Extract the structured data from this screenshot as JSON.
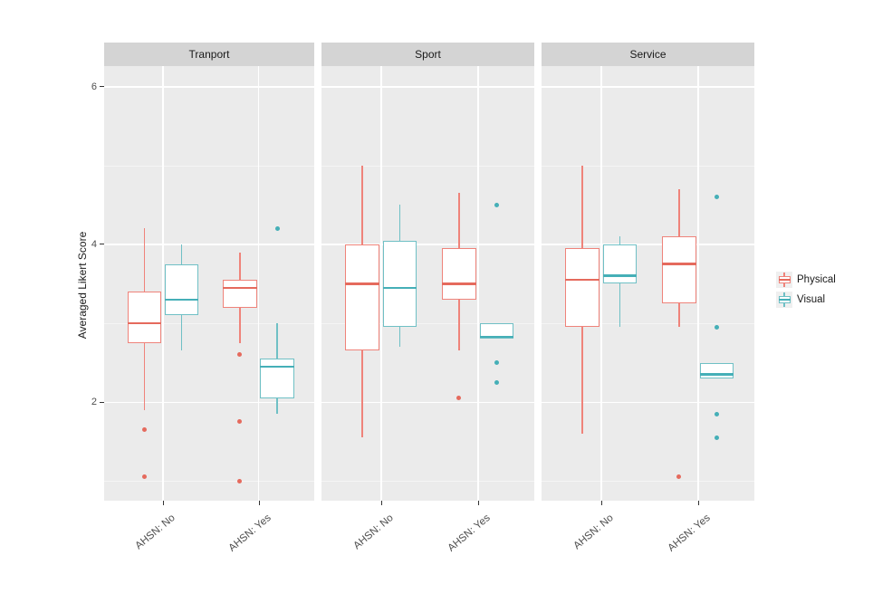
{
  "chart_data": {
    "type": "boxplot",
    "title": "",
    "ylabel": "Averaged Likert Score",
    "facets": [
      "Tranport",
      "Sport",
      "Service"
    ],
    "x_categories": [
      "AHSN: No",
      "AHSN: Yes"
    ],
    "series": [
      {
        "name": "Physical",
        "stroke": "#EF837A",
        "line": "#E56A5D"
      },
      {
        "name": "Visual",
        "stroke": "#6FC0C5",
        "line": "#45AFB7"
      }
    ],
    "ylim": [
      0.75,
      6.26
    ],
    "yticks": [
      2,
      4,
      6
    ],
    "yticks_minor": [
      1,
      3,
      5
    ],
    "grid": true,
    "legend_position": "right",
    "legend_items": [
      "Physical",
      "Visual"
    ],
    "boxes": [
      {
        "facet": "Tranport",
        "category": "AHSN: No",
        "series": "Physical",
        "whisker_low": 1.9,
        "q1": 2.75,
        "median": 3.0,
        "q3": 3.4,
        "whisker_high": 4.2,
        "outliers": [
          1.65,
          1.05
        ]
      },
      {
        "facet": "Tranport",
        "category": "AHSN: No",
        "series": "Visual",
        "whisker_low": 2.65,
        "q1": 3.1,
        "median": 3.3,
        "q3": 3.75,
        "whisker_high": 4.0,
        "outliers": []
      },
      {
        "facet": "Tranport",
        "category": "AHSN: Yes",
        "series": "Physical",
        "whisker_low": 2.75,
        "q1": 3.2,
        "median": 3.45,
        "q3": 3.55,
        "whisker_high": 3.9,
        "outliers": [
          2.6,
          1.75,
          1.0
        ]
      },
      {
        "facet": "Tranport",
        "category": "AHSN: Yes",
        "series": "Visual",
        "whisker_low": 1.85,
        "q1": 2.05,
        "median": 2.45,
        "q3": 2.55,
        "whisker_high": 3.0,
        "outliers": [
          4.2
        ]
      },
      {
        "facet": "Sport",
        "category": "AHSN: No",
        "series": "Physical",
        "whisker_low": 1.55,
        "q1": 2.65,
        "median": 3.5,
        "q3": 4.0,
        "whisker_high": 5.0,
        "outliers": []
      },
      {
        "facet": "Sport",
        "category": "AHSN: No",
        "series": "Visual",
        "whisker_low": 2.7,
        "q1": 2.95,
        "median": 3.45,
        "q3": 4.05,
        "whisker_high": 4.5,
        "outliers": []
      },
      {
        "facet": "Sport",
        "category": "AHSN: Yes",
        "series": "Physical",
        "whisker_low": 2.65,
        "q1": 3.3,
        "median": 3.5,
        "q3": 3.95,
        "whisker_high": 4.65,
        "outliers": [
          2.05
        ]
      },
      {
        "facet": "Sport",
        "category": "AHSN: Yes",
        "series": "Visual",
        "whisker_low": 2.8,
        "q1": 2.8,
        "median": 2.83,
        "q3": 3.0,
        "whisker_high": 3.0,
        "outliers": [
          4.5,
          2.5,
          2.25
        ]
      },
      {
        "facet": "Service",
        "category": "AHSN: No",
        "series": "Physical",
        "whisker_low": 1.6,
        "q1": 2.95,
        "median": 3.55,
        "q3": 3.95,
        "whisker_high": 5.0,
        "outliers": []
      },
      {
        "facet": "Service",
        "category": "AHSN: No",
        "series": "Visual",
        "whisker_low": 2.95,
        "q1": 3.5,
        "median": 3.6,
        "q3": 4.0,
        "whisker_high": 4.1,
        "outliers": []
      },
      {
        "facet": "Service",
        "category": "AHSN: Yes",
        "series": "Physical",
        "whisker_low": 2.95,
        "q1": 3.25,
        "median": 3.75,
        "q3": 4.1,
        "whisker_high": 4.7,
        "outliers": [
          1.05
        ]
      },
      {
        "facet": "Service",
        "category": "AHSN: Yes",
        "series": "Visual",
        "whisker_low": 2.3,
        "q1": 2.3,
        "median": 2.35,
        "q3": 2.5,
        "whisker_high": 2.5,
        "outliers": [
          4.6,
          2.95,
          1.85,
          1.55
        ]
      }
    ]
  },
  "theme": {
    "panel_bg": "#EBEBEB",
    "strip_bg": "#D4D4D4",
    "grid_major": "#FFFFFF",
    "grid_minor": "#F5F5F5",
    "axis_text": "#4D4D4D",
    "tick_mark": "#333333",
    "legend_key_bg": "#EFEFEF"
  }
}
